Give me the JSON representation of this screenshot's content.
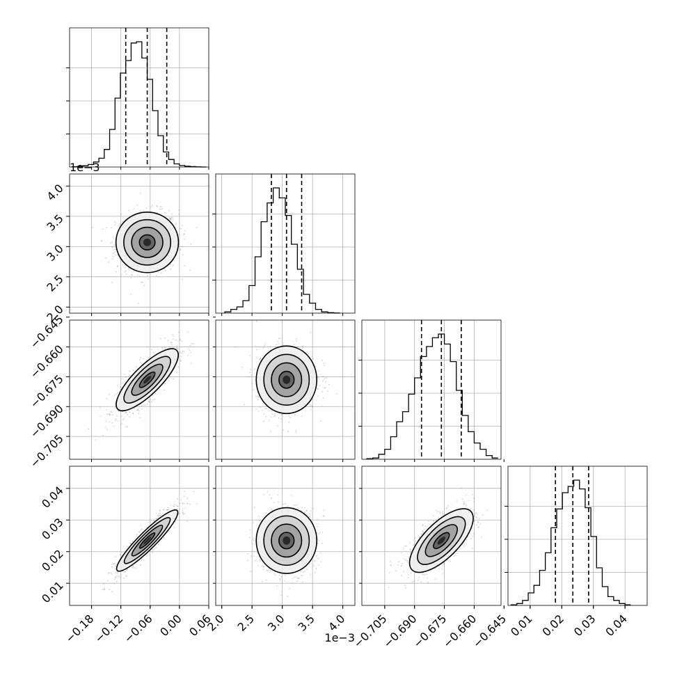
{
  "chart_data": {
    "type": "corner",
    "title": "",
    "parameters": [
      {
        "range": [
          -0.225,
          0.06
        ],
        "ticks": [
          -0.18,
          -0.12,
          -0.06,
          0.0,
          0.06
        ],
        "tick_labels": [
          "−0.18",
          "−0.12",
          "−0.06",
          "0.00",
          "0.06"
        ],
        "offset_label": ""
      },
      {
        "range": [
          1.9,
          4.2
        ],
        "ticks": [
          2.0,
          2.5,
          3.0,
          3.5,
          4.0
        ],
        "tick_labels": [
          "2.0",
          "2.5",
          "3.0",
          "3.5",
          "4.0"
        ],
        "offset_label": "1e−3"
      },
      {
        "range": [
          -0.7165,
          -0.6465
        ],
        "ticks": [
          -0.705,
          -0.69,
          -0.675,
          -0.66,
          -0.645
        ],
        "tick_labels": [
          "−0.705",
          "−0.690",
          "−0.675",
          "−0.660",
          "−0.645"
        ],
        "offset_label": ""
      },
      {
        "range": [
          0.003,
          0.047
        ],
        "ticks": [
          0.01,
          0.02,
          0.03,
          0.04
        ],
        "tick_labels": [
          "0.01",
          "0.02",
          "0.03",
          "0.04"
        ],
        "offset_label": ""
      }
    ],
    "histograms": [
      {
        "bins": [
          -0.22,
          -0.209,
          -0.198,
          -0.187,
          -0.176,
          -0.165,
          -0.154,
          -0.143,
          -0.132,
          -0.121,
          -0.11,
          -0.099,
          -0.088,
          -0.077,
          -0.066,
          -0.055,
          -0.044,
          -0.033,
          -0.022,
          -0.011,
          0.0,
          0.011,
          0.022,
          0.033,
          0.044,
          0.055
        ],
        "counts": [
          0.002,
          0.005,
          0.01,
          0.02,
          0.04,
          0.07,
          0.14,
          0.3,
          0.55,
          0.75,
          0.85,
          0.99,
          1.0,
          0.87,
          0.7,
          0.45,
          0.25,
          0.12,
          0.06,
          0.025,
          0.012,
          0.006,
          0.003,
          0.001,
          0.0
        ],
        "quantiles": [
          -0.11,
          -0.066,
          -0.026
        ]
      },
      {
        "bins": [
          2.05,
          2.15,
          2.25,
          2.35,
          2.45,
          2.55,
          2.65,
          2.75,
          2.85,
          2.95,
          3.05,
          3.15,
          3.25,
          3.35,
          3.45,
          3.55,
          3.65,
          3.75,
          3.85,
          3.95
        ],
        "counts": [
          0.01,
          0.03,
          0.05,
          0.1,
          0.22,
          0.45,
          0.73,
          0.88,
          1.0,
          0.92,
          0.78,
          0.55,
          0.35,
          0.15,
          0.08,
          0.03,
          0.01,
          0.004,
          0.001
        ],
        "quantiles": [
          2.82,
          3.07,
          3.32
        ]
      },
      {
        "bins": [
          -0.714,
          -0.711,
          -0.708,
          -0.705,
          -0.702,
          -0.699,
          -0.696,
          -0.693,
          -0.69,
          -0.687,
          -0.684,
          -0.681,
          -0.678,
          -0.675,
          -0.672,
          -0.669,
          -0.666,
          -0.663,
          -0.66,
          -0.657,
          -0.654,
          -0.651,
          -0.648
        ],
        "counts": [
          0.005,
          0.01,
          0.04,
          0.08,
          0.18,
          0.3,
          0.38,
          0.52,
          0.65,
          0.82,
          0.9,
          0.97,
          1.0,
          0.92,
          0.78,
          0.55,
          0.35,
          0.22,
          0.13,
          0.08,
          0.03,
          0.01
        ],
        "quantiles": [
          -0.6865,
          -0.6765,
          -0.6665
        ]
      },
      {
        "bins": [
          0.004,
          0.0058,
          0.0076,
          0.0094,
          0.0112,
          0.013,
          0.0148,
          0.0166,
          0.0184,
          0.0202,
          0.022,
          0.0238,
          0.0256,
          0.0274,
          0.0292,
          0.031,
          0.0328,
          0.0346,
          0.0364,
          0.0382,
          0.04,
          0.0418
        ],
        "counts": [
          0.005,
          0.015,
          0.04,
          0.1,
          0.16,
          0.28,
          0.42,
          0.62,
          0.77,
          0.9,
          0.95,
          1.0,
          0.93,
          0.78,
          0.55,
          0.3,
          0.15,
          0.07,
          0.04,
          0.015,
          0.005
        ],
        "quantiles": [
          0.018,
          0.0235,
          0.0285
        ]
      }
    ],
    "scatter_2d": [
      {
        "x_param": 0,
        "y_param": 1,
        "mean": [
          -0.066,
          3.07
        ],
        "std": [
          0.032,
          0.25
        ],
        "corr": 0.05
      },
      {
        "x_param": 0,
        "y_param": 2,
        "mean": [
          -0.066,
          -0.6765
        ],
        "std": [
          0.032,
          0.0085
        ],
        "corr": 0.8
      },
      {
        "x_param": 1,
        "y_param": 2,
        "mean": [
          3.07,
          -0.6765
        ],
        "std": [
          0.25,
          0.0085
        ],
        "corr": 0.05
      },
      {
        "x_param": 0,
        "y_param": 3,
        "mean": [
          -0.066,
          0.0235
        ],
        "std": [
          0.032,
          0.0052
        ],
        "corr": 0.92
      },
      {
        "x_param": 1,
        "y_param": 3,
        "mean": [
          3.07,
          0.0235
        ],
        "std": [
          0.25,
          0.0052
        ],
        "corr": 0.05
      },
      {
        "x_param": 2,
        "y_param": 3,
        "mean": [
          -0.6765,
          0.0235
        ],
        "std": [
          0.0085,
          0.0052
        ],
        "corr": 0.7
      }
    ],
    "contour_levels_sigma": [
      0.5,
      1.0,
      1.5,
      2.0
    ],
    "grid": true,
    "colors": {
      "line": "#000000",
      "grid": "#b0b0b0",
      "points": "#7f7f7f"
    }
  }
}
